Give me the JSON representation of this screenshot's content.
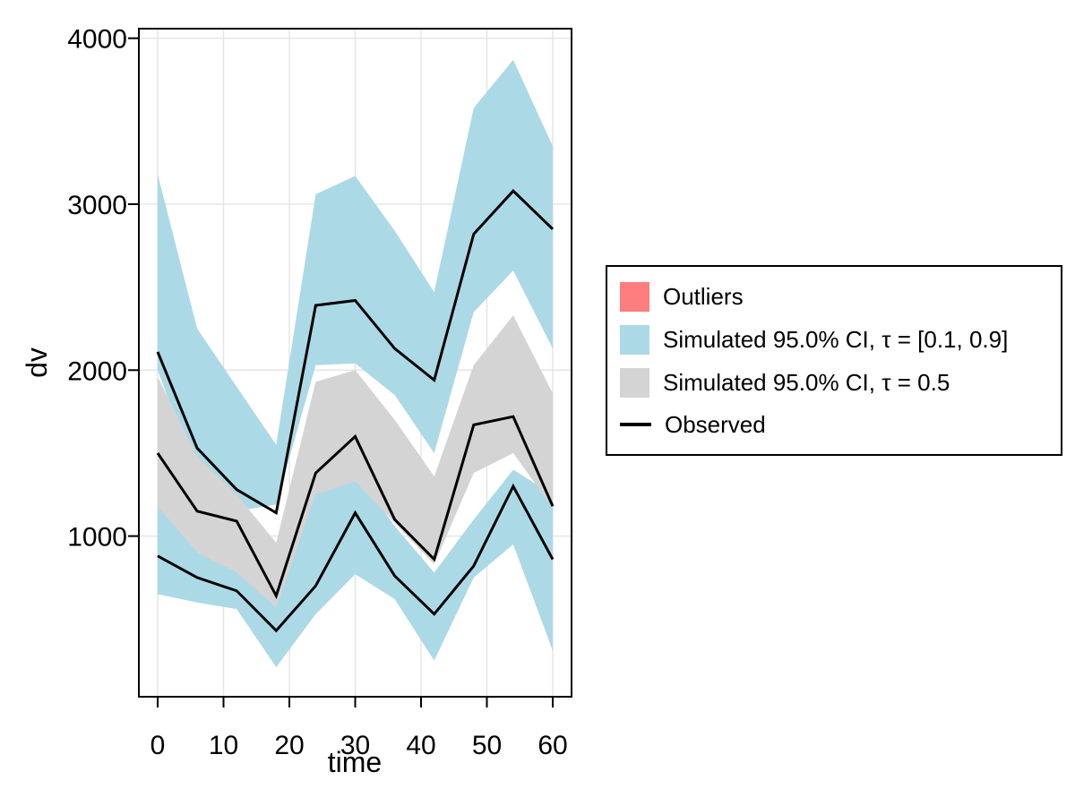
{
  "figure": {
    "background_color": "#FFFFFF",
    "frame_color": "#000000",
    "grid_color": "#E5E5E5"
  },
  "axes": {
    "xlabel": "time",
    "ylabel": "dv",
    "xticks": [
      0,
      10,
      20,
      30,
      40,
      50,
      60
    ],
    "yticks": [
      1000,
      2000,
      3000,
      4000
    ]
  },
  "legend": {
    "items": [
      {
        "label": "Outliers",
        "swatch": "patch",
        "color": "#FC7E7E"
      },
      {
        "label": "Simulated 95.0% CI, τ = [0.1, 0.9]",
        "swatch": "patch",
        "color": "#ACD9E6"
      },
      {
        "label": "Simulated 95.0% CI, τ = 0.5",
        "swatch": "patch",
        "color": "#D4D4D4"
      },
      {
        "label": "Observed",
        "swatch": "line",
        "color": "#000000"
      }
    ]
  },
  "chart_data": {
    "type": "line",
    "title": "",
    "xlabel": "time",
    "ylabel": "dv",
    "xlim": [
      -3,
      63
    ],
    "ylim": [
      25,
      4060
    ],
    "grid": true,
    "legend_position": "right-outside",
    "x": [
      0,
      6,
      12,
      18,
      24,
      30,
      36,
      42,
      48,
      54,
      60
    ],
    "bands": [
      {
        "name": "Simulated 95.0% CI, τ = 0.9 (upper blue band)",
        "color": "#ACD9E6",
        "upper": [
          3180,
          2250,
          1900,
          1550,
          3060,
          3170,
          2840,
          2470,
          3580,
          3870,
          3350
        ],
        "lower": [
          2000,
          1360,
          1150,
          1190,
          2030,
          2040,
          1850,
          1500,
          2350,
          2600,
          2130
        ]
      },
      {
        "name": "Simulated 95.0% CI, τ = 0.1 (lower blue band)",
        "color": "#ACD9E6",
        "upper": [
          1190,
          920,
          800,
          640,
          1340,
          1390,
          1060,
          780,
          1100,
          1400,
          1250
        ],
        "lower": [
          650,
          600,
          560,
          210,
          530,
          770,
          620,
          250,
          750,
          950,
          310
        ]
      },
      {
        "name": "Simulated 95.0% CI, τ = 0.5 (gray band)",
        "color": "#D4D4D4",
        "upper": [
          1960,
          1480,
          1250,
          960,
          1930,
          2000,
          1700,
          1360,
          2030,
          2330,
          1860
        ],
        "lower": [
          1180,
          900,
          780,
          570,
          1250,
          1330,
          1080,
          830,
          1380,
          1500,
          1170
        ]
      }
    ],
    "series": [
      {
        "name": "Observed quantile τ = 0.9",
        "color": "#000000",
        "values": [
          2110,
          1530,
          1280,
          1140,
          2390,
          2420,
          2130,
          1940,
          2820,
          3080,
          2850
        ]
      },
      {
        "name": "Observed quantile τ = 0.5",
        "color": "#000000",
        "values": [
          1500,
          1150,
          1090,
          640,
          1380,
          1600,
          1100,
          860,
          1670,
          1720,
          1180
        ]
      },
      {
        "name": "Observed quantile τ = 0.1",
        "color": "#000000",
        "values": [
          880,
          750,
          670,
          430,
          700,
          1140,
          760,
          530,
          820,
          1300,
          860
        ]
      }
    ]
  }
}
